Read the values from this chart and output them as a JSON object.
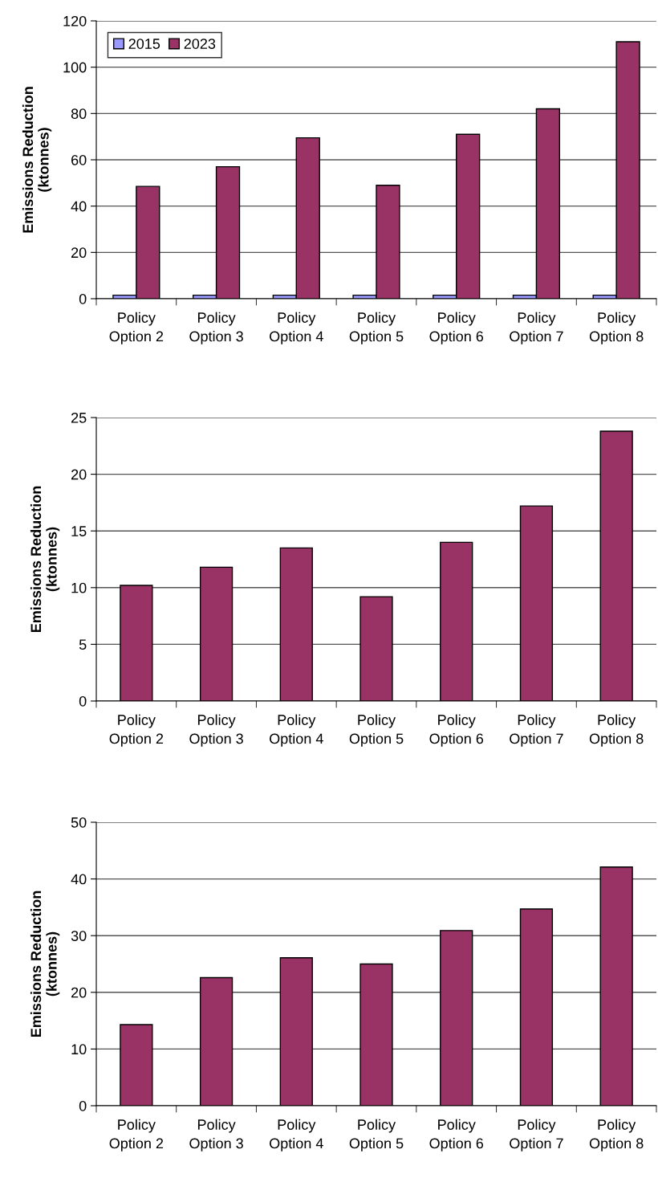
{
  "chart_data": [
    {
      "type": "bar",
      "ylabel": "Emissions Reduction\n(ktonnes)",
      "categories": [
        "Policy\nOption 2",
        "Policy\nOption 3",
        "Policy\nOption 4",
        "Policy\nOption 5",
        "Policy\nOption 6",
        "Policy\nOption 7",
        "Policy\nOption 8"
      ],
      "series": [
        {
          "name": "2015",
          "color": "#9999ff",
          "values": [
            1.5,
            1.5,
            1.5,
            1.5,
            1.5,
            1.5,
            1.5
          ]
        },
        {
          "name": "2023",
          "color": "#993366",
          "values": [
            48.5,
            57,
            69.5,
            49,
            71,
            82,
            111
          ]
        }
      ],
      "ylim": [
        0,
        120
      ],
      "yticks": [
        0,
        20,
        40,
        60,
        80,
        100,
        120
      ],
      "grid": "y",
      "legend": "top left"
    },
    {
      "type": "bar",
      "ylabel": "Emissions Reduction\n(ktonnes)",
      "categories": [
        "Policy\nOption 2",
        "Policy\nOption 3",
        "Policy\nOption 4",
        "Policy\nOption 5",
        "Policy\nOption 6",
        "Policy\nOption 7",
        "Policy\nOption 8"
      ],
      "series": [
        {
          "color": "#993366",
          "values": [
            10.2,
            11.8,
            13.5,
            9.2,
            14.0,
            17.2,
            23.8
          ]
        }
      ],
      "ylim": [
        0,
        25
      ],
      "yticks": [
        0,
        5,
        10,
        15,
        20,
        25
      ],
      "grid": "y"
    },
    {
      "type": "bar",
      "ylabel": "Emissions Reduction\n(ktonnes)",
      "categories": [
        "Policy\nOption 2",
        "Policy\nOption 3",
        "Policy\nOption 4",
        "Policy\nOption 5",
        "Policy\nOption 6",
        "Policy\nOption 7",
        "Policy\nOption 8"
      ],
      "series": [
        {
          "color": "#993366",
          "values": [
            14.3,
            22.6,
            26.1,
            25.0,
            30.9,
            34.7,
            42.1
          ]
        }
      ],
      "ylim": [
        0,
        50
      ],
      "yticks": [
        0,
        10,
        20,
        30,
        40,
        50
      ],
      "grid": "y"
    }
  ]
}
